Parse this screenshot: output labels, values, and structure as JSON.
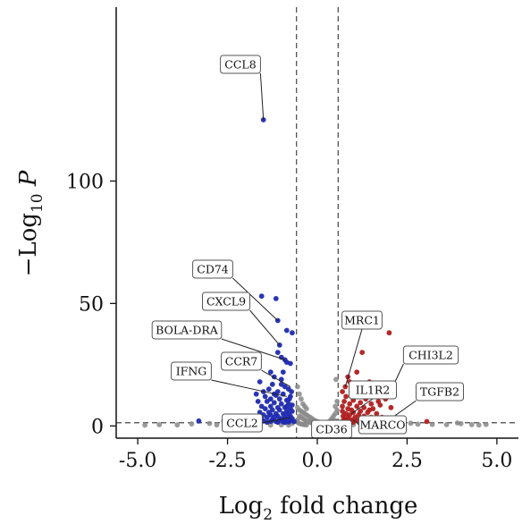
{
  "chart_data": {
    "type": "scatter",
    "title": "",
    "xlabel": "Log2 fold change",
    "xlabel_parts": {
      "base": "Log",
      "sub": "2",
      "rest": " fold change"
    },
    "ylabel": "−Log10 P",
    "ylabel_parts": {
      "base": "−Log",
      "sub": "10",
      "rest": " P"
    },
    "xlim": [
      -5.6,
      5.6
    ],
    "ylim": [
      -5,
      171
    ],
    "x_ticks": [
      -5.0,
      -2.5,
      0.0,
      2.5,
      5.0
    ],
    "x_tick_labels": [
      "-5.0",
      "-2.5",
      "0.0",
      "2.5",
      "5.0"
    ],
    "y_ticks": [
      0,
      50,
      100
    ],
    "y_tick_labels": [
      "0",
      "50",
      "100"
    ],
    "grid": false,
    "thresholds": {
      "fc_low": -0.58,
      "fc_high": 0.58,
      "p_line": 1.3
    },
    "colors": {
      "down": "#1f2ab0",
      "up": "#b11d1d",
      "ns": "#8a8a8a"
    },
    "series": [
      {
        "group": "down",
        "points": [
          [
            -1.5,
            125
          ],
          [
            -1.55,
            53
          ],
          [
            -1.15,
            52
          ],
          [
            -1.1,
            43
          ],
          [
            -0.85,
            39
          ],
          [
            -0.7,
            38
          ],
          [
            -1.05,
            33
          ],
          [
            -1.1,
            30
          ],
          [
            -1.0,
            28
          ],
          [
            -0.9,
            27
          ],
          [
            -0.85,
            26
          ],
          [
            -0.75,
            25.5
          ],
          [
            -1.3,
            22
          ],
          [
            -1.2,
            20
          ],
          [
            -1.6,
            18
          ],
          [
            -1.0,
            17
          ],
          [
            -0.9,
            16
          ],
          [
            -0.8,
            15
          ],
          [
            -1.1,
            14
          ],
          [
            -1.5,
            14
          ],
          [
            -1.2,
            13
          ],
          [
            -0.95,
            13
          ],
          [
            -0.75,
            12
          ],
          [
            -1.3,
            11
          ],
          [
            -1.05,
            11
          ],
          [
            -0.85,
            10.5
          ],
          [
            -1.4,
            10
          ],
          [
            -1.2,
            9.5
          ],
          [
            -1.0,
            9
          ],
          [
            -0.8,
            9
          ],
          [
            -0.7,
            8.5
          ],
          [
            -1.55,
            8
          ],
          [
            -1.3,
            8
          ],
          [
            -1.1,
            7.5
          ],
          [
            -0.9,
            7.5
          ],
          [
            -0.75,
            7
          ],
          [
            -1.45,
            7
          ],
          [
            -1.25,
            6.5
          ],
          [
            -1.05,
            6.5
          ],
          [
            -0.85,
            6
          ],
          [
            -0.7,
            6
          ],
          [
            -1.6,
            5.5
          ],
          [
            -1.35,
            5.5
          ],
          [
            -1.15,
            5
          ],
          [
            -0.95,
            5
          ],
          [
            -0.8,
            5
          ],
          [
            -1.5,
            4.5
          ],
          [
            -1.3,
            4.5
          ],
          [
            -1.1,
            4
          ],
          [
            -0.9,
            4
          ],
          [
            -0.75,
            4
          ],
          [
            -1.7,
            3.5
          ],
          [
            -1.4,
            3.5
          ],
          [
            -1.2,
            3.5
          ],
          [
            -1.0,
            3
          ],
          [
            -0.85,
            3
          ],
          [
            -0.7,
            3
          ],
          [
            -1.55,
            2.8
          ],
          [
            -1.25,
            2.6
          ],
          [
            -1.05,
            2.5
          ],
          [
            -0.9,
            2.3
          ],
          [
            -0.75,
            2.2
          ],
          [
            -1.8,
            2.2
          ],
          [
            -1.5,
            2
          ],
          [
            -1.3,
            1.9
          ],
          [
            -1.15,
            1.8
          ],
          [
            -0.95,
            1.7
          ],
          [
            -0.8,
            1.6
          ],
          [
            -0.65,
            1.8
          ],
          [
            -1.9,
            2
          ],
          [
            -2.2,
            2
          ],
          [
            -2.6,
            2
          ],
          [
            -3.3,
            2
          ],
          [
            -1.6,
            1.6
          ],
          [
            -1.4,
            1.5
          ],
          [
            -1.1,
            1.5
          ],
          [
            -0.9,
            1.4
          ],
          [
            -2.0,
            1.6
          ],
          [
            -1.7,
            13
          ],
          [
            -1.35,
            15
          ],
          [
            -1.25,
            17
          ],
          [
            -1.0,
            19
          ],
          [
            -0.95,
            22
          ],
          [
            -1.45,
            12
          ],
          [
            -1.65,
            10
          ],
          [
            -1.15,
            12.5
          ],
          [
            -0.85,
            8
          ],
          [
            -0.78,
            11
          ],
          [
            -0.72,
            14
          ]
        ]
      },
      {
        "group": "up",
        "points": [
          [
            1.65,
            45
          ],
          [
            2.0,
            38
          ],
          [
            1.25,
            30
          ],
          [
            1.1,
            22
          ],
          [
            0.85,
            20
          ],
          [
            0.9,
            18
          ],
          [
            1.45,
            18
          ],
          [
            2.1,
            16
          ],
          [
            1.3,
            16
          ],
          [
            0.95,
            15
          ],
          [
            0.7,
            14
          ],
          [
            1.15,
            13
          ],
          [
            1.6,
            13
          ],
          [
            0.8,
            12
          ],
          [
            1.35,
            11
          ],
          [
            1.9,
            11
          ],
          [
            1.0,
            10.5
          ],
          [
            0.75,
            10
          ],
          [
            1.2,
            9.5
          ],
          [
            1.5,
            9
          ],
          [
            0.9,
            9
          ],
          [
            1.75,
            8.5
          ],
          [
            0.7,
            8
          ],
          [
            1.1,
            8
          ],
          [
            1.3,
            7.5
          ],
          [
            2.05,
            7.5
          ],
          [
            0.85,
            7
          ],
          [
            1.55,
            7
          ],
          [
            0.95,
            6.5
          ],
          [
            1.2,
            6
          ],
          [
            0.7,
            6
          ],
          [
            1.4,
            5.5
          ],
          [
            1.0,
            5.5
          ],
          [
            0.8,
            5
          ],
          [
            1.65,
            5
          ],
          [
            1.15,
            4.5
          ],
          [
            0.9,
            4.5
          ],
          [
            0.72,
            4
          ],
          [
            1.3,
            4
          ],
          [
            1.05,
            3.5
          ],
          [
            1.5,
            3.5
          ],
          [
            0.85,
            3.2
          ],
          [
            2.05,
            3
          ],
          [
            1.2,
            3
          ],
          [
            0.75,
            2.8
          ],
          [
            1.4,
            2.6
          ],
          [
            0.95,
            2.5
          ],
          [
            1.1,
            2.3
          ],
          [
            0.8,
            2.2
          ],
          [
            1.6,
            2.2
          ],
          [
            2.4,
            2
          ],
          [
            3.05,
            1.8
          ],
          [
            0.7,
            1.8
          ],
          [
            1.25,
            1.8
          ],
          [
            1.85,
            1.8
          ],
          [
            0.9,
            1.6
          ],
          [
            1.0,
            1.5
          ],
          [
            0.65,
            1.5
          ],
          [
            1.35,
            1.4
          ],
          [
            2.2,
            1.6
          ],
          [
            1.8,
            3.5
          ],
          [
            1.45,
            6.5
          ],
          [
            1.7,
            10
          ],
          [
            0.78,
            16
          ],
          [
            1.05,
            12
          ]
        ]
      },
      {
        "group": "ns",
        "points": [
          [
            -0.55,
            16
          ],
          [
            -0.5,
            13
          ],
          [
            -0.45,
            11
          ],
          [
            -0.4,
            9
          ],
          [
            -0.35,
            8
          ],
          [
            -0.3,
            7
          ],
          [
            -0.55,
            7.5
          ],
          [
            -0.5,
            6.5
          ],
          [
            -0.45,
            6
          ],
          [
            -0.4,
            5.5
          ],
          [
            -0.35,
            5
          ],
          [
            -0.3,
            4.5
          ],
          [
            -0.25,
            4
          ],
          [
            -0.2,
            3.5
          ],
          [
            -0.15,
            3
          ],
          [
            -0.1,
            2.5
          ],
          [
            -0.05,
            2
          ],
          [
            0.0,
            1.8
          ],
          [
            0.05,
            1.5
          ],
          [
            0.1,
            1.3
          ],
          [
            -0.5,
            4
          ],
          [
            -0.45,
            3.5
          ],
          [
            -0.4,
            3
          ],
          [
            -0.35,
            2.5
          ],
          [
            -0.3,
            2
          ],
          [
            -0.25,
            1.8
          ],
          [
            -0.2,
            1.5
          ],
          [
            -0.15,
            1.2
          ],
          [
            -0.1,
            1
          ],
          [
            -0.05,
            0.8
          ],
          [
            0.0,
            0.6
          ],
          [
            0.05,
            0.5
          ],
          [
            0.1,
            0.4
          ],
          [
            0.15,
            0.3
          ],
          [
            0.2,
            0.3
          ],
          [
            -0.55,
            2.5
          ],
          [
            -0.55,
            1.5
          ],
          [
            -0.5,
            1
          ],
          [
            -0.45,
            0.8
          ],
          [
            -0.4,
            0.6
          ],
          [
            -0.35,
            0.5
          ],
          [
            -0.3,
            0.4
          ],
          [
            0.25,
            1
          ],
          [
            0.3,
            1.5
          ],
          [
            0.35,
            2
          ],
          [
            0.4,
            3
          ],
          [
            0.45,
            4
          ],
          [
            0.5,
            5
          ],
          [
            0.55,
            6.5
          ],
          [
            0.5,
            8
          ],
          [
            0.55,
            10
          ],
          [
            0.52,
            19
          ],
          [
            0.45,
            2.5
          ],
          [
            0.35,
            0.8
          ],
          [
            0.3,
            0.5
          ],
          [
            0.4,
            1.2
          ],
          [
            0.5,
            1.5
          ],
          [
            0.55,
            2
          ],
          [
            0.2,
            0.8
          ],
          [
            0.15,
            0.6
          ],
          [
            -1.9,
            0.5
          ],
          [
            -2.3,
            0.6
          ],
          [
            -2.8,
            0.4
          ],
          [
            -3.5,
            0.8
          ],
          [
            -3.9,
            0.4
          ],
          [
            -4.4,
            0.5
          ],
          [
            -1.3,
            0.3
          ],
          [
            -1.0,
            0.4
          ],
          [
            -0.8,
            0.3
          ],
          [
            -0.7,
            1
          ],
          [
            -1.6,
            0.7
          ],
          [
            -2.0,
            1.2
          ],
          [
            1.0,
            0.5
          ],
          [
            1.4,
            0.3
          ],
          [
            1.9,
            0.6
          ],
          [
            2.3,
            0.4
          ],
          [
            2.8,
            0.7
          ],
          [
            3.6,
            0.5
          ],
          [
            4.0,
            0.9
          ],
          [
            4.3,
            0.5
          ],
          [
            4.5,
            0.4
          ],
          [
            3.2,
            0.6
          ],
          [
            0.8,
            0.8
          ],
          [
            0.7,
            0.5
          ],
          [
            2.6,
            1.1
          ],
          [
            1.7,
            0.9
          ],
          [
            -4.8,
            0.3
          ],
          [
            4.7,
            0.6
          ],
          [
            3.9,
            1.2
          ],
          [
            -3.0,
            1
          ]
        ]
      }
    ],
    "annotations": [
      {
        "label": "CCL8",
        "point": [
          -1.5,
          125
        ]
      },
      {
        "label": "CD74",
        "point": [
          -1.1,
          43
        ]
      },
      {
        "label": "CXCL9",
        "point": [
          -1.05,
          33
        ]
      },
      {
        "label": "BOLA-DRA",
        "point": [
          -0.9,
          27
        ]
      },
      {
        "label": "CCR7",
        "point": [
          -0.75,
          16
        ]
      },
      {
        "label": "IFNG",
        "point": [
          -0.85,
          12
        ]
      },
      {
        "label": "CCL2",
        "point": [
          -0.75,
          3.5
        ]
      },
      {
        "label": "MRC1",
        "point": [
          0.78,
          16
        ]
      },
      {
        "label": "CHI3L2",
        "point": [
          2.1,
          16
        ]
      },
      {
        "label": "IL1R2",
        "point": [
          0.95,
          5
        ]
      },
      {
        "label": "TGFB2",
        "point": [
          2.05,
          3
        ]
      },
      {
        "label": "MARCO",
        "point": [
          1.0,
          2.5
        ]
      },
      {
        "label": "CD36",
        "point": [
          0.55,
          2
        ]
      }
    ]
  }
}
